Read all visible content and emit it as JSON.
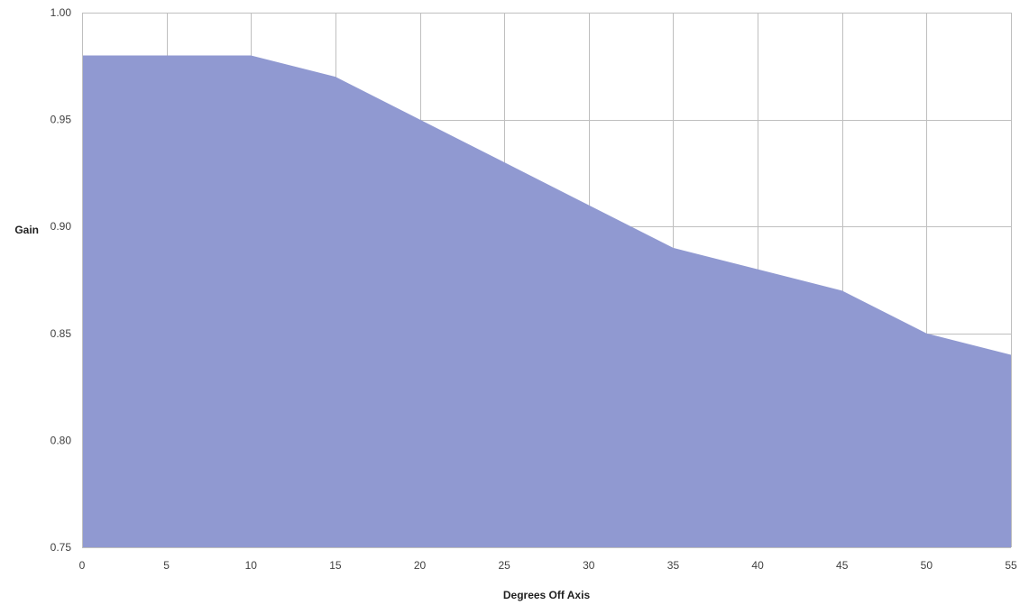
{
  "chart_data": {
    "type": "area",
    "title": "",
    "xlabel": "Degrees Off Axis",
    "ylabel": "Gain",
    "x": [
      0,
      5,
      10,
      15,
      20,
      25,
      30,
      35,
      40,
      45,
      50,
      55
    ],
    "series": [
      {
        "values": [
          0.98,
          0.98,
          0.98,
          0.97,
          0.95,
          0.93,
          0.91,
          0.89,
          0.88,
          0.87,
          0.85,
          0.84
        ],
        "color": "#9099d1"
      }
    ],
    "xlim": [
      0,
      55
    ],
    "ylim": [
      0.75,
      1.0
    ],
    "x_ticks": [
      "0",
      "5",
      "10",
      "15",
      "20",
      "25",
      "30",
      "35",
      "40",
      "45",
      "50",
      "55"
    ],
    "y_ticks": [
      "0.75",
      "0.80",
      "0.85",
      "0.90",
      "0.95",
      "1.00"
    ],
    "grid": true,
    "legend": "none"
  }
}
